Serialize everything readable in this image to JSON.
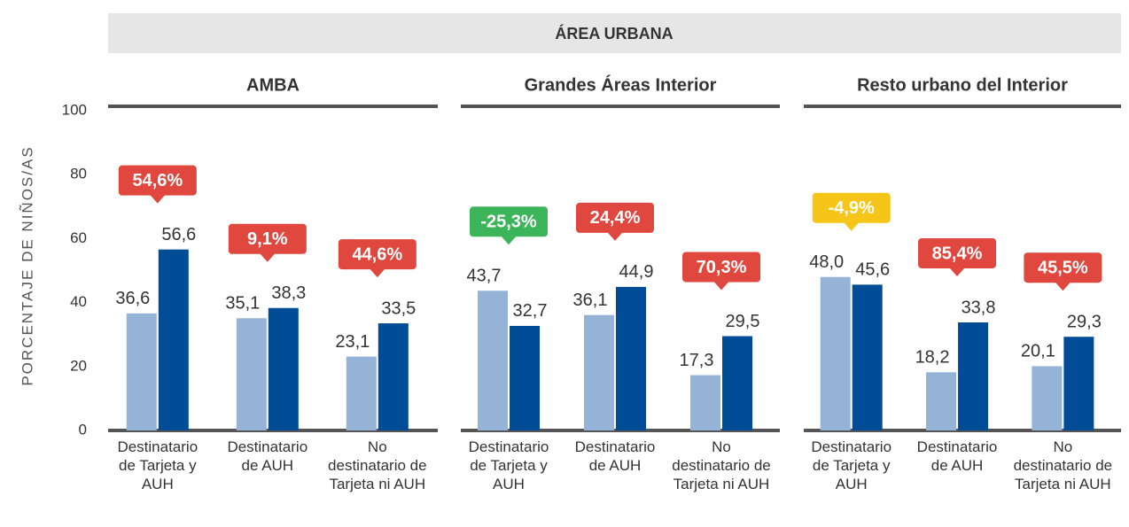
{
  "chart_data": {
    "type": "bar",
    "title": "ÁREA URBANA",
    "ylabel": "PORCENTAJE DE NIÑOS/AS",
    "ylim": [
      0,
      100
    ],
    "yticks": [
      0,
      20,
      40,
      60,
      80,
      100
    ],
    "groups": [
      {
        "name": "AMBA",
        "categories": [
          "Destinatario de Tarjeta y AUH",
          "Destinatario de AUH",
          "No destinatario de Tarjeta ni AUH"
        ],
        "series": [
          {
            "color": "#95b3d7",
            "values": [
              36.6,
              35.1,
              23.1
            ],
            "value_labels": [
              "36,6",
              "35,1",
              "23,1"
            ]
          },
          {
            "color": "#004c97",
            "values": [
              56.6,
              38.3,
              33.5
            ],
            "value_labels": [
              "56,6",
              "38,3",
              "33,5"
            ]
          }
        ],
        "changes": {
          "values": [
            54.6,
            9.1,
            44.6
          ],
          "value_labels": [
            "54,6%",
            "9,1%",
            "44,6%"
          ],
          "colors": [
            "#e0473e",
            "#e0473e",
            "#e0473e"
          ]
        }
      },
      {
        "name": "Grandes Áreas Interior",
        "categories": [
          "Destinatario de Tarjeta y AUH",
          "Destinatario de AUH",
          "No destinatario de Tarjeta ni AUH"
        ],
        "series": [
          {
            "color": "#95b3d7",
            "values": [
              43.7,
              36.1,
              17.3
            ],
            "value_labels": [
              "43,7",
              "36,1",
              "17,3"
            ]
          },
          {
            "color": "#004c97",
            "values": [
              32.7,
              44.9,
              29.5
            ],
            "value_labels": [
              "32,7",
              "44,9",
              "29,5"
            ]
          }
        ],
        "changes": {
          "values": [
            -25.3,
            24.4,
            70.3
          ],
          "value_labels": [
            "-25,3%",
            "24,4%",
            "70,3%"
          ],
          "colors": [
            "#3cb55a",
            "#e0473e",
            "#e0473e"
          ]
        }
      },
      {
        "name": "Resto urbano del Interior",
        "categories": [
          "Destinatario de Tarjeta y AUH",
          "Destinatario de AUH",
          "No destinatario de Tarjeta ni AUH"
        ],
        "series": [
          {
            "color": "#95b3d7",
            "values": [
              48.0,
              18.2,
              20.1
            ],
            "value_labels": [
              "48,0",
              "18,2",
              "20,1"
            ]
          },
          {
            "color": "#004c97",
            "values": [
              45.6,
              33.8,
              29.3
            ],
            "value_labels": [
              "45,6",
              "33,8",
              "29,3"
            ]
          }
        ],
        "changes": {
          "values": [
            -4.9,
            85.4,
            45.5
          ],
          "value_labels": [
            "-4,9%",
            "85,4%",
            "45,5%"
          ],
          "colors": [
            "#f5c518",
            "#e0473e",
            "#e0473e"
          ]
        }
      }
    ]
  }
}
